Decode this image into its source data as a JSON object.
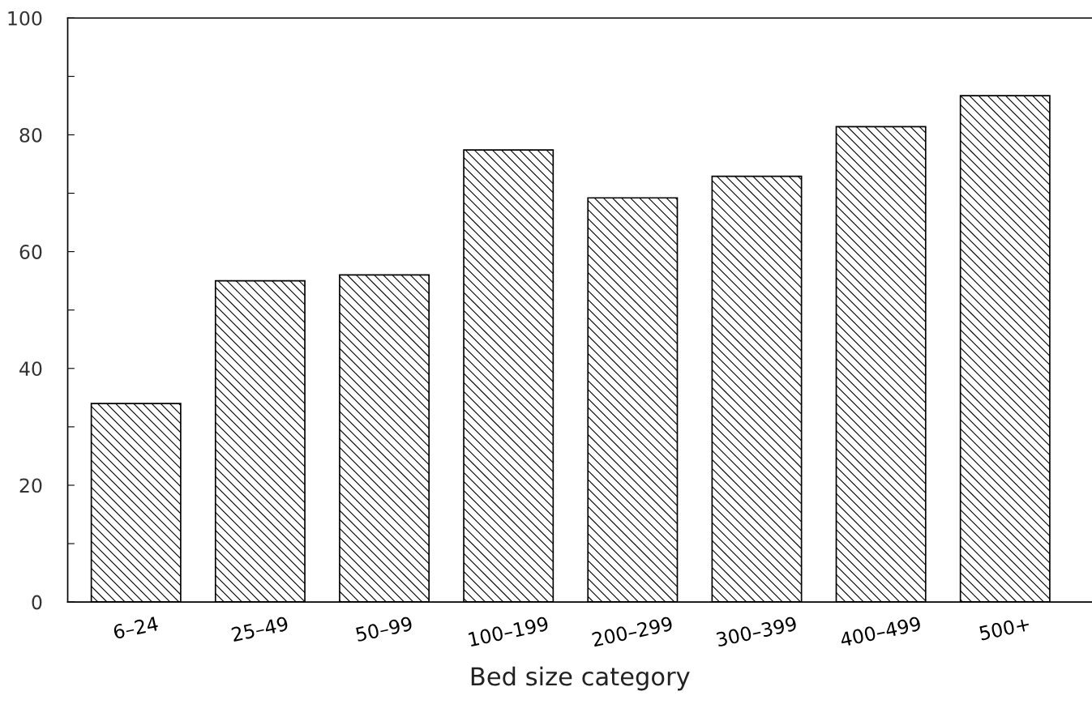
{
  "chart_data": {
    "type": "bar",
    "xlabel": "Bed size category",
    "categories": [
      "6–24",
      "25–49",
      "50–99",
      "100–199",
      "200–299",
      "300–399",
      "400–499",
      "500+"
    ],
    "values": [
      34,
      55,
      56,
      77.4,
      69.2,
      72.9,
      81.4,
      86.7
    ],
    "color": "#000000",
    "ylim": [
      0,
      100
    ],
    "yticks": [
      0,
      {
        "value": 10,
        "label": null
      },
      20,
      {
        "value": 30,
        "label": null
      },
      40,
      {
        "value": 50,
        "label": null
      },
      60,
      {
        "value": 70,
        "label": null
      },
      80,
      {
        "value": 90,
        "label": null
      },
      100
    ],
    "grid": false,
    "legend": false
  }
}
